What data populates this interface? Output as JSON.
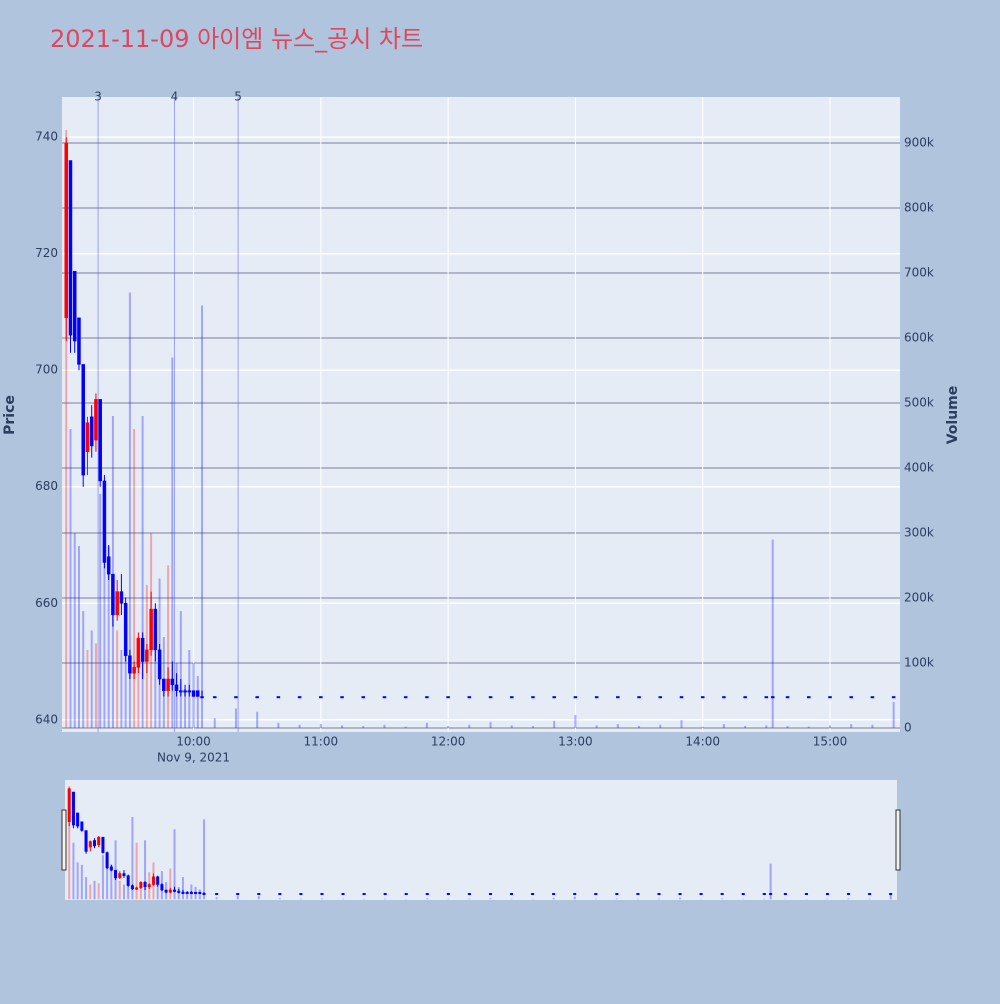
{
  "chart_data": {
    "type": "candlestick",
    "title": "2021-11-09 아이엠 뉴스_공시 차트",
    "y_label": "Price",
    "y2_label": "Volume",
    "x_subtitle": "Nov 9, 2021",
    "increasing_color": "#ff0000",
    "decreasing_color": "#0000ff",
    "xlim": [
      "2021-11-09 08:58",
      "2021-11-09 15:33"
    ],
    "xticks": [
      {
        "value": "2021-11-09 10:00",
        "label": "10:00"
      },
      {
        "value": "2021-11-09 11:00",
        "label": "11:00"
      },
      {
        "value": "2021-11-09 12:00",
        "label": "12:00"
      },
      {
        "value": "2021-11-09 13:00",
        "label": "13:00"
      },
      {
        "value": "2021-11-09 14:00",
        "label": "14:00"
      },
      {
        "value": "2021-11-09 15:00",
        "label": "15:00"
      }
    ],
    "ylim": [
      637.9,
      746.9
    ],
    "yticks": [
      640,
      660,
      680,
      700,
      720,
      740
    ],
    "y2lim": [
      -6150,
      970800
    ],
    "y2ticks": [
      0,
      {
        "value": 100000,
        "label": "100k"
      },
      {
        "value": 200000,
        "label": "200k"
      },
      {
        "value": 300000,
        "label": "300k"
      },
      {
        "value": 400000,
        "label": "400k"
      },
      {
        "value": 500000,
        "label": "500k"
      },
      {
        "value": 600000,
        "label": "600k"
      },
      {
        "value": 700000,
        "label": "700k"
      },
      {
        "value": 800000,
        "label": "800k"
      },
      {
        "value": 900000,
        "label": "900k"
      }
    ],
    "annotations": [
      {
        "x": "2021-11-09 09:15",
        "text": "3"
      },
      {
        "x": "2021-11-09 09:51",
        "text": "4"
      },
      {
        "x": "2021-11-09 10:21",
        "text": "5"
      }
    ],
    "x": [
      "2021-11-09 09:00",
      "2021-11-09 09:02",
      "2021-11-09 09:04",
      "2021-11-09 09:06",
      "2021-11-09 09:08",
      "2021-11-09 09:10",
      "2021-11-09 09:12",
      "2021-11-09 09:14",
      "2021-11-09 09:16",
      "2021-11-09 09:18",
      "2021-11-09 09:20",
      "2021-11-09 09:22",
      "2021-11-09 09:24",
      "2021-11-09 09:26",
      "2021-11-09 09:28",
      "2021-11-09 09:30",
      "2021-11-09 09:32",
      "2021-11-09 09:34",
      "2021-11-09 09:36",
      "2021-11-09 09:38",
      "2021-11-09 09:40",
      "2021-11-09 09:42",
      "2021-11-09 09:44",
      "2021-11-09 09:46",
      "2021-11-09 09:48",
      "2021-11-09 09:50",
      "2021-11-09 09:52",
      "2021-11-09 09:54",
      "2021-11-09 09:56",
      "2021-11-09 09:58",
      "2021-11-09 10:00",
      "2021-11-09 10:02",
      "2021-11-09 10:04",
      "2021-11-09 10:10",
      "2021-11-09 10:20",
      "2021-11-09 10:30",
      "2021-11-09 10:40",
      "2021-11-09 10:50",
      "2021-11-09 11:00",
      "2021-11-09 11:10",
      "2021-11-09 11:20",
      "2021-11-09 11:30",
      "2021-11-09 11:40",
      "2021-11-09 11:50",
      "2021-11-09 12:00",
      "2021-11-09 12:10",
      "2021-11-09 12:20",
      "2021-11-09 12:30",
      "2021-11-09 12:40",
      "2021-11-09 12:50",
      "2021-11-09 13:00",
      "2021-11-09 13:10",
      "2021-11-09 13:20",
      "2021-11-09 13:30",
      "2021-11-09 13:40",
      "2021-11-09 13:50",
      "2021-11-09 14:00",
      "2021-11-09 14:10",
      "2021-11-09 14:20",
      "2021-11-09 14:30",
      "2021-11-09 14:33",
      "2021-11-09 14:40",
      "2021-11-09 14:50",
      "2021-11-09 15:00",
      "2021-11-09 15:10",
      "2021-11-09 15:20",
      "2021-11-09 15:30"
    ],
    "open": [
      709,
      736,
      717,
      709,
      701,
      686,
      692,
      688,
      695,
      681,
      668,
      665,
      658,
      662,
      660,
      651,
      648,
      649,
      654,
      650,
      652,
      659,
      652,
      647,
      645,
      647,
      646,
      645,
      645,
      645,
      645,
      645,
      644,
      644,
      644,
      644,
      644,
      644,
      644,
      644,
      644,
      644,
      644,
      644,
      644,
      644,
      644,
      644,
      644,
      644,
      644,
      644,
      644,
      644,
      644,
      644,
      644,
      644,
      644,
      644,
      644,
      644,
      644,
      644,
      644,
      644,
      644
    ],
    "high": [
      740,
      736,
      717,
      709,
      701,
      692,
      694,
      696,
      695,
      682,
      670,
      665,
      664,
      665,
      661,
      652,
      650,
      655,
      655,
      653,
      662,
      660,
      653,
      647,
      649,
      650,
      648,
      647,
      646,
      646,
      645,
      645,
      645,
      644,
      644,
      644,
      644,
      644,
      644,
      644,
      644,
      644,
      644,
      644,
      644,
      644,
      644,
      644,
      644,
      644,
      644,
      644,
      644,
      644,
      644,
      644,
      644,
      644,
      644,
      644,
      644,
      644,
      644,
      644,
      644,
      644,
      644
    ],
    "low": [
      705,
      703,
      703,
      700,
      680,
      682,
      685,
      686,
      680,
      666,
      664,
      656,
      657,
      658,
      650,
      647,
      647,
      648,
      647,
      648,
      651,
      650,
      646,
      644,
      644,
      645,
      644,
      644,
      644,
      644,
      644,
      644,
      644,
      644,
      644,
      644,
      644,
      644,
      644,
      644,
      644,
      644,
      644,
      644,
      644,
      644,
      644,
      644,
      644,
      644,
      644,
      644,
      644,
      644,
      644,
      644,
      644,
      644,
      644,
      644,
      644,
      644,
      644,
      644,
      644,
      644,
      644
    ],
    "close": [
      739,
      706,
      705,
      701,
      682,
      691,
      687,
      695,
      681,
      667,
      665,
      658,
      662,
      660,
      651,
      648,
      649,
      654,
      650,
      652,
      659,
      652,
      647,
      645,
      647,
      646,
      645,
      645,
      645,
      645,
      644,
      644,
      644,
      644,
      644,
      644,
      644,
      644,
      644,
      644,
      644,
      644,
      644,
      644,
      644,
      644,
      644,
      644,
      644,
      644,
      644,
      644,
      644,
      644,
      644,
      644,
      644,
      644,
      644,
      644,
      644,
      644,
      644,
      644,
      644,
      644,
      644
    ],
    "volume": [
      920000,
      460000,
      300000,
      280000,
      180000,
      120000,
      150000,
      130000,
      360000,
      320000,
      280000,
      480000,
      150000,
      120000,
      130000,
      670000,
      460000,
      140000,
      480000,
      220000,
      300000,
      180000,
      230000,
      140000,
      250000,
      570000,
      100000,
      180000,
      60000,
      120000,
      100000,
      80000,
      650000,
      15000,
      30000,
      25000,
      8000,
      5000,
      6000,
      4000,
      3000,
      5000,
      2000,
      8000,
      3000,
      5000,
      9000,
      4000,
      3000,
      11000,
      20000,
      4000,
      6000,
      3000,
      5000,
      12000,
      2000,
      6000,
      3000,
      4000,
      290000,
      3000,
      2000,
      4000,
      6000,
      5000,
      40000
    ]
  }
}
